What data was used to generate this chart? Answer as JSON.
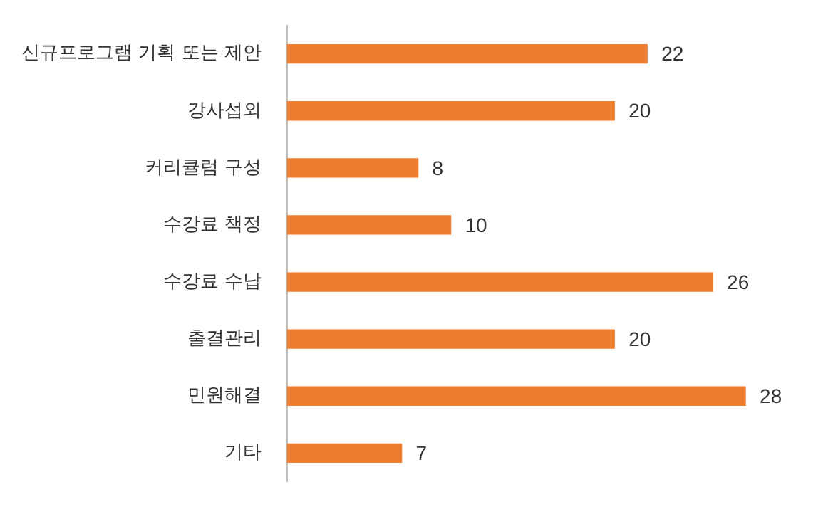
{
  "chart_data": {
    "type": "bar",
    "orientation": "horizontal",
    "categories": [
      "신규프로그램 기획 또는 제안",
      "강사섭외",
      "커리큘럼 구성",
      "수강료 책정",
      "수강료 수납",
      "출결관리",
      "민원해결",
      "기타"
    ],
    "values": [
      22,
      20,
      8,
      10,
      26,
      20,
      28,
      7
    ],
    "color": "#ed7d31",
    "data_labels": true,
    "legend": false,
    "tick_labels": "y"
  }
}
